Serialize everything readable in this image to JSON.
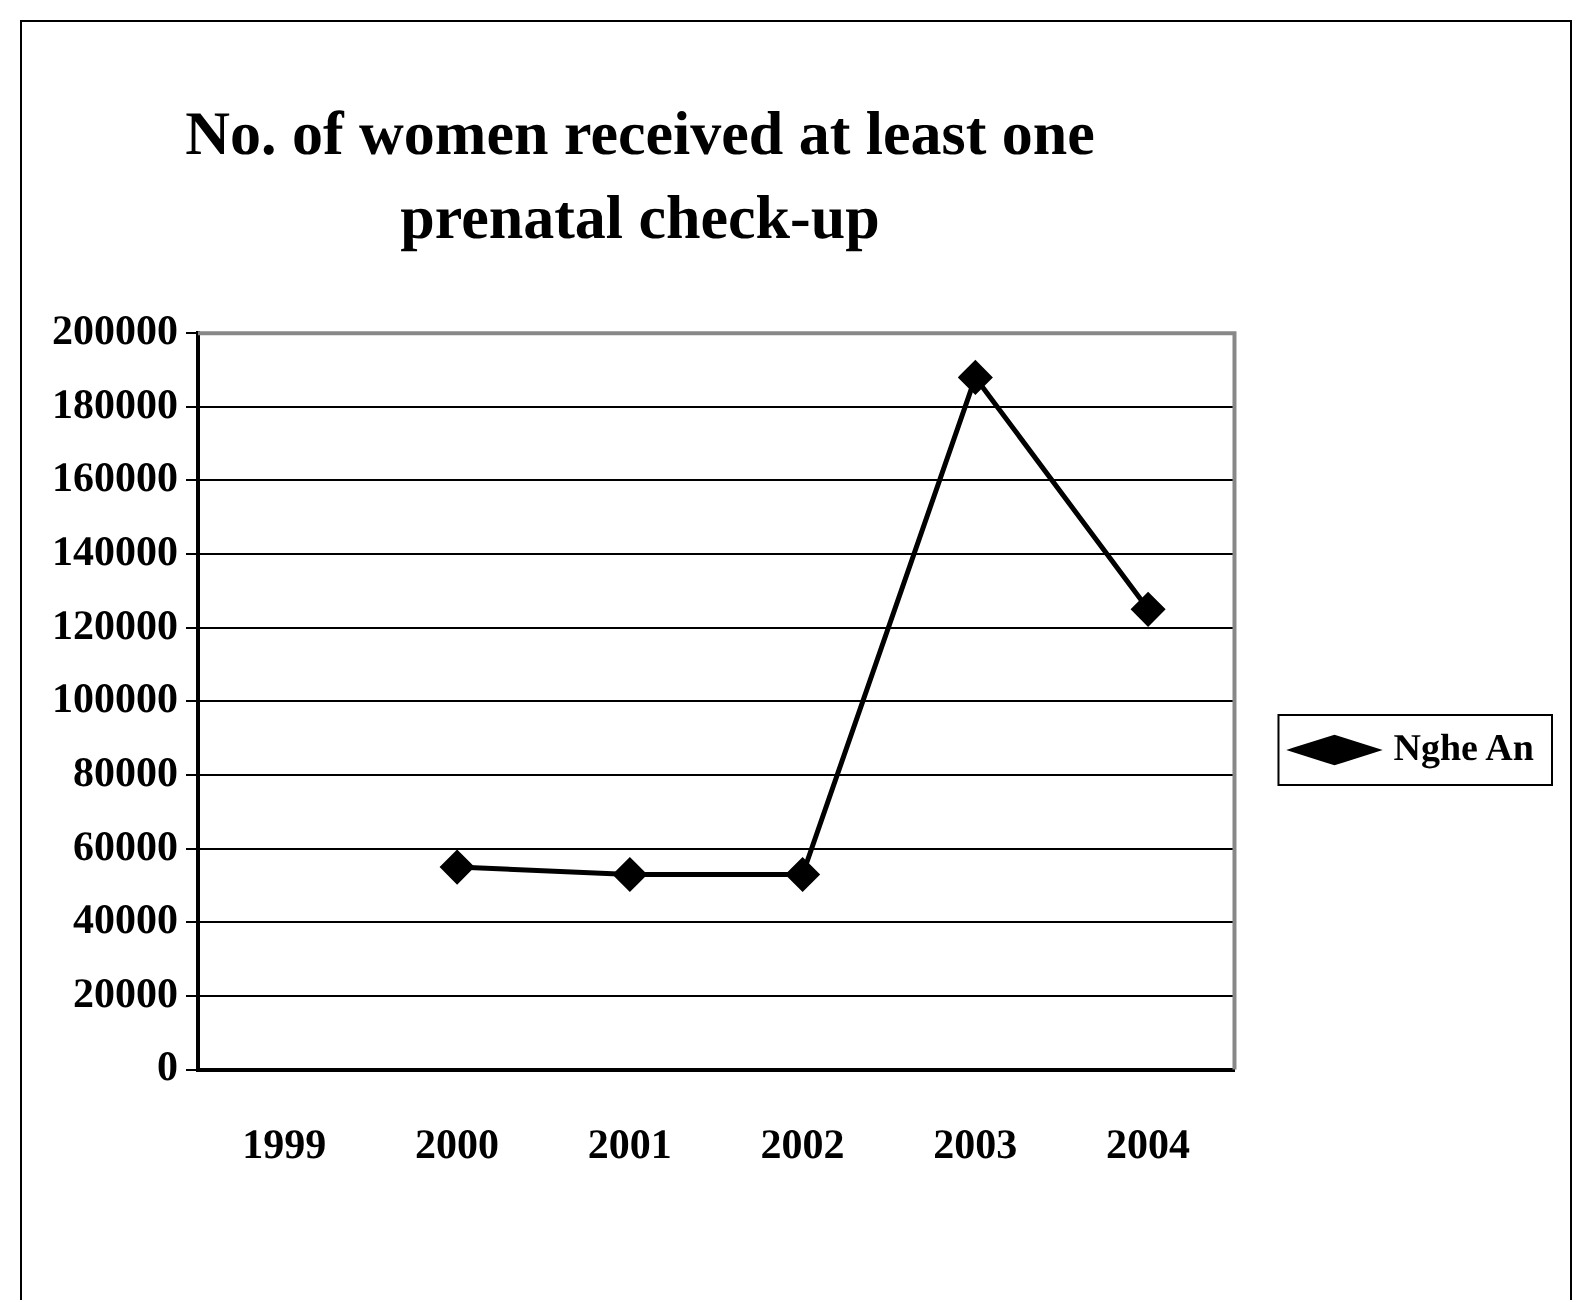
{
  "chart_data": {
    "type": "line",
    "title": "No. of women received at least one prenatal check-up",
    "categories": [
      "1999",
      "2000",
      "2001",
      "2002",
      "2003",
      "2004"
    ],
    "series": [
      {
        "name": "Nghe An",
        "color": "#000000",
        "values": [
          null,
          55000,
          53000,
          53000,
          188000,
          125000
        ]
      }
    ],
    "ylim": [
      0,
      200000
    ],
    "yticks": [
      0,
      20000,
      40000,
      60000,
      80000,
      100000,
      120000,
      140000,
      160000,
      180000,
      200000
    ],
    "grid": "y",
    "legend": "right",
    "marker": "diamond",
    "line_style": "solid"
  }
}
